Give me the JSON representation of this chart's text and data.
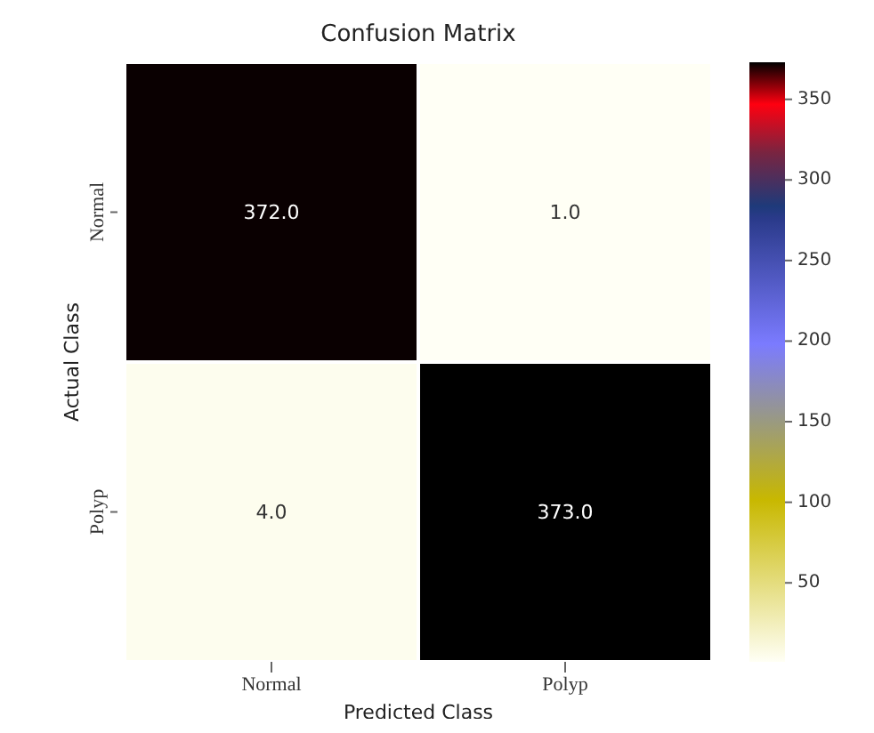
{
  "chart_data": {
    "type": "heatmap",
    "title": "Confusion Matrix",
    "xlabel": "Predicted Class",
    "ylabel": "Actual Class",
    "categories": [
      "Normal",
      "Polyp"
    ],
    "y_categories": [
      "Normal",
      "Polyp"
    ],
    "cells": [
      [
        372,
        1
      ],
      [
        4,
        373
      ]
    ],
    "cell_labels": [
      [
        "372.0",
        "1.0"
      ],
      [
        "4.0",
        "373.0"
      ]
    ],
    "clim": [
      1,
      373
    ],
    "cticks": [
      50,
      100,
      150,
      200,
      250,
      300,
      350
    ]
  }
}
